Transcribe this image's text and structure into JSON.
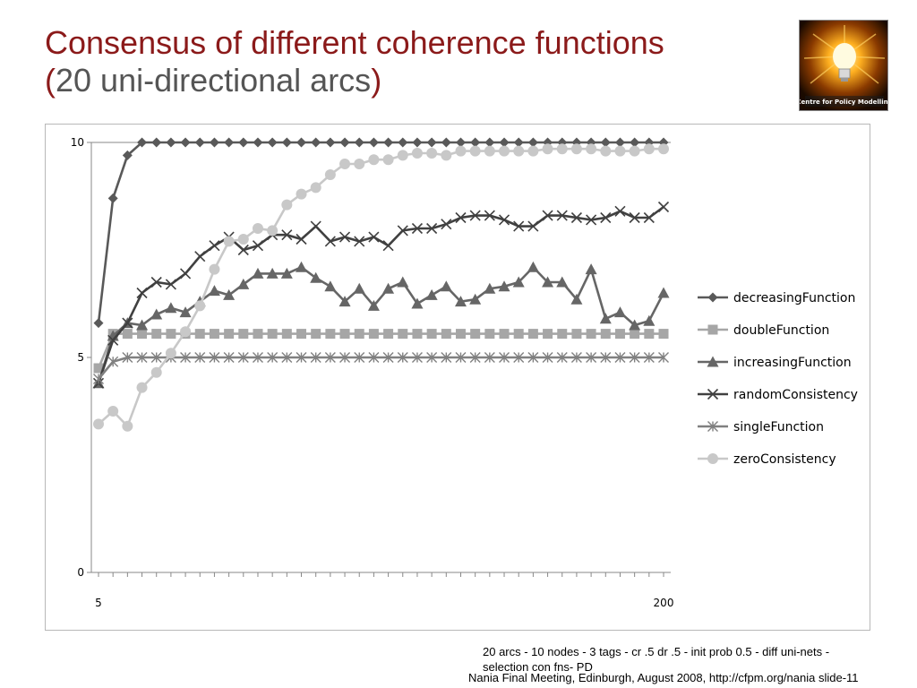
{
  "slide": {
    "title_line1": "Consensus of different coherence functions",
    "title_line2_open": "(",
    "title_line2_text": "20 uni-directional arcs",
    "title_line2_close": ")",
    "logo_text": "Centre for Policy Modelling",
    "footnote": "20 arcs - 10 nodes - 3 tags - cr .5 dr .5 - init prob 0.5 - diff uni-nets - selection con fns- PD",
    "footer": "Nania Final Meeting, Edinburgh, August 2008, http://cfpm.org/nania slide-11"
  },
  "chart_data": {
    "type": "line",
    "title": "",
    "xlabel": "",
    "ylabel": "",
    "ylim": [
      0,
      10
    ],
    "xlim": [
      5,
      200
    ],
    "yticks": [
      0,
      5,
      10
    ],
    "xtick_labels": [
      "5",
      "200"
    ],
    "legend_position": "right",
    "grid": false,
    "x": [
      5,
      10,
      15,
      20,
      25,
      30,
      35,
      40,
      45,
      50,
      55,
      60,
      65,
      70,
      75,
      80,
      85,
      90,
      95,
      100,
      105,
      110,
      115,
      120,
      125,
      130,
      135,
      140,
      145,
      150,
      155,
      160,
      165,
      170,
      175,
      180,
      185,
      190,
      195,
      200
    ],
    "series": [
      {
        "name": "decreasingFunction",
        "marker": "diamond",
        "color": "#595959",
        "values": [
          5.8,
          8.7,
          9.7,
          10,
          10,
          10,
          10,
          10,
          10,
          10,
          10,
          10,
          10,
          10,
          10,
          10,
          10,
          10,
          10,
          10,
          10,
          10,
          10,
          10,
          10,
          10,
          10,
          10,
          10,
          10,
          10,
          10,
          10,
          10,
          10,
          10,
          10,
          10,
          10,
          10
        ]
      },
      {
        "name": "doubleFunction",
        "marker": "square",
        "color": "#a6a6a6",
        "values": [
          4.75,
          5.55,
          5.55,
          5.55,
          5.55,
          5.55,
          5.55,
          5.55,
          5.55,
          5.55,
          5.55,
          5.55,
          5.55,
          5.55,
          5.55,
          5.55,
          5.55,
          5.55,
          5.55,
          5.55,
          5.55,
          5.55,
          5.55,
          5.55,
          5.55,
          5.55,
          5.55,
          5.55,
          5.55,
          5.55,
          5.55,
          5.55,
          5.55,
          5.55,
          5.55,
          5.55,
          5.55,
          5.55,
          5.55,
          5.55
        ]
      },
      {
        "name": "increasingFunction",
        "marker": "triangle",
        "color": "#666666",
        "values": [
          4.4,
          5.5,
          5.8,
          5.75,
          6.0,
          6.15,
          6.05,
          6.3,
          6.55,
          6.45,
          6.7,
          6.95,
          6.95,
          6.95,
          7.1,
          6.85,
          6.65,
          6.3,
          6.6,
          6.2,
          6.6,
          6.75,
          6.25,
          6.45,
          6.65,
          6.3,
          6.35,
          6.6,
          6.65,
          6.75,
          7.1,
          6.75,
          6.75,
          6.35,
          7.05,
          5.9,
          6.05,
          5.75,
          5.85,
          6.5
        ]
      },
      {
        "name": "randomConsistency",
        "marker": "x",
        "color": "#404040",
        "values": [
          4.4,
          5.4,
          5.8,
          6.5,
          6.75,
          6.7,
          6.95,
          7.35,
          7.6,
          7.8,
          7.5,
          7.6,
          7.85,
          7.85,
          7.75,
          8.05,
          7.7,
          7.8,
          7.7,
          7.8,
          7.6,
          7.95,
          8.0,
          8.0,
          8.1,
          8.25,
          8.3,
          8.3,
          8.2,
          8.05,
          8.05,
          8.3,
          8.3,
          8.25,
          8.2,
          8.25,
          8.4,
          8.25,
          8.25,
          8.5
        ]
      },
      {
        "name": "singleFunction",
        "marker": "asterisk",
        "color": "#808080",
        "values": [
          4.5,
          4.9,
          5.0,
          5.0,
          5.0,
          5.0,
          5.0,
          5.0,
          5.0,
          5.0,
          5.0,
          5.0,
          5.0,
          5.0,
          5.0,
          5.0,
          5.0,
          5.0,
          5.0,
          5.0,
          5.0,
          5.0,
          5.0,
          5.0,
          5.0,
          5.0,
          5.0,
          5.0,
          5.0,
          5.0,
          5.0,
          5.0,
          5.0,
          5.0,
          5.0,
          5.0,
          5.0,
          5.0,
          5.0,
          5.0
        ]
      },
      {
        "name": "zeroConsistency",
        "marker": "circle",
        "color": "#c8c8c8",
        "values": [
          3.45,
          3.75,
          3.4,
          4.3,
          4.65,
          5.1,
          5.6,
          6.2,
          7.05,
          7.7,
          7.75,
          8.0,
          7.95,
          8.55,
          8.8,
          8.95,
          9.25,
          9.5,
          9.5,
          9.6,
          9.6,
          9.7,
          9.75,
          9.75,
          9.7,
          9.8,
          9.8,
          9.8,
          9.8,
          9.8,
          9.8,
          9.85,
          9.85,
          9.85,
          9.85,
          9.8,
          9.8,
          9.8,
          9.85,
          9.85
        ]
      }
    ]
  }
}
